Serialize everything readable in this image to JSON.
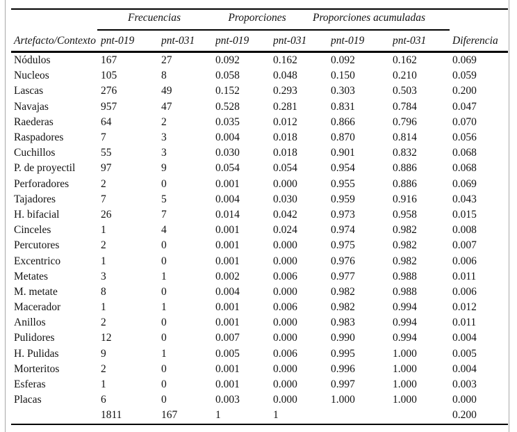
{
  "table": {
    "col_groups": [
      {
        "label": "Frecuencias"
      },
      {
        "label": "Proporciones"
      },
      {
        "label": "Proporciones acumuladas"
      }
    ],
    "columns": [
      "Artefacto/Contexto",
      "pnt-019",
      "pnt-031",
      "pnt-019",
      "pnt-031",
      "pnt-019",
      "pnt-031",
      "Diferencia"
    ],
    "rows": [
      [
        "Nódulos",
        "167",
        "27",
        "0.092",
        "0.162",
        "0.092",
        "0.162",
        "0.069"
      ],
      [
        "Nucleos",
        "105",
        "8",
        "0.058",
        "0.048",
        "0.150",
        "0.210",
        "0.059"
      ],
      [
        "Lascas",
        "276",
        "49",
        "0.152",
        "0.293",
        "0.303",
        "0.503",
        "0.200"
      ],
      [
        "Navajas",
        "957",
        "47",
        "0.528",
        "0.281",
        "0.831",
        "0.784",
        "0.047"
      ],
      [
        "Raederas",
        "64",
        "2",
        "0.035",
        "0.012",
        "0.866",
        "0.796",
        "0.070"
      ],
      [
        "Raspadores",
        "7",
        "3",
        "0.004",
        "0.018",
        "0.870",
        "0.814",
        "0.056"
      ],
      [
        "Cuchillos",
        "55",
        "3",
        "0.030",
        "0.018",
        "0.901",
        "0.832",
        "0.068"
      ],
      [
        "P. de proyectil",
        "97",
        "9",
        "0.054",
        "0.054",
        "0.954",
        "0.886",
        "0.068"
      ],
      [
        "Perforadores",
        "2",
        "0",
        "0.001",
        "0.000",
        "0.955",
        "0.886",
        "0.069"
      ],
      [
        "Tajadores",
        "7",
        "5",
        "0.004",
        "0.030",
        "0.959",
        "0.916",
        "0.043"
      ],
      [
        "H. bifacial",
        "26",
        "7",
        "0.014",
        "0.042",
        "0.973",
        "0.958",
        "0.015"
      ],
      [
        "Cinceles",
        "1",
        "4",
        "0.001",
        "0.024",
        "0.974",
        "0.982",
        "0.008"
      ],
      [
        "Percutores",
        "2",
        "0",
        "0.001",
        "0.000",
        "0.975",
        "0.982",
        "0.007"
      ],
      [
        "Excentrico",
        "1",
        "0",
        "0.001",
        "0.000",
        "0.976",
        "0.982",
        "0.006"
      ],
      [
        "Metates",
        "3",
        "1",
        "0.002",
        "0.006",
        "0.977",
        "0.988",
        "0.011"
      ],
      [
        "M. metate",
        "8",
        "0",
        "0.004",
        "0.000",
        "0.982",
        "0.988",
        "0.006"
      ],
      [
        "Macerador",
        "1",
        "1",
        "0.001",
        "0.006",
        "0.982",
        "0.994",
        "0.012"
      ],
      [
        "Anillos",
        "2",
        "0",
        "0.001",
        "0.000",
        "0.983",
        "0.994",
        "0.011"
      ],
      [
        "Pulidores",
        "12",
        "0",
        "0.007",
        "0.000",
        "0.990",
        "0.994",
        "0.004"
      ],
      [
        "H. Pulidas",
        "9",
        "1",
        "0.005",
        "0.006",
        "0.995",
        "1.000",
        "0.005"
      ],
      [
        "Morteritos",
        "2",
        "0",
        "0.001",
        "0.000",
        "0.996",
        "1.000",
        "0.004"
      ],
      [
        "Esferas",
        "1",
        "0",
        "0.001",
        "0.000",
        "0.997",
        "1.000",
        "0.003"
      ],
      [
        "Placas",
        "6",
        "0",
        "0.003",
        "0.000",
        "1.000",
        "1.000",
        "0.000"
      ]
    ],
    "totals": [
      "",
      "1811",
      "167",
      "1",
      "1",
      "",
      "",
      "0.200"
    ]
  }
}
